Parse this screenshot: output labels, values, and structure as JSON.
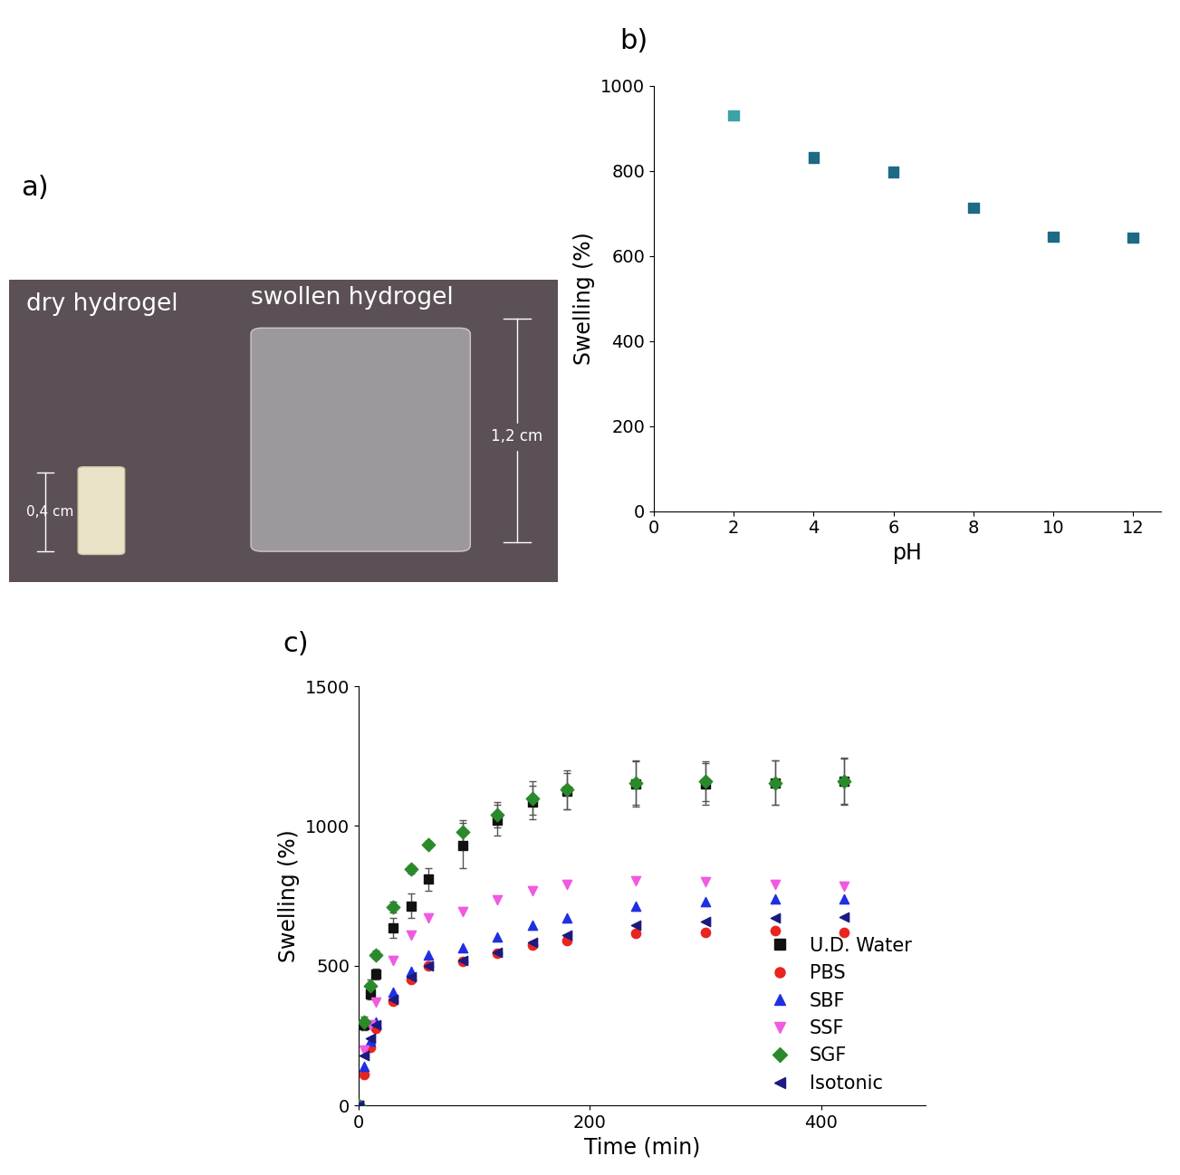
{
  "image": {
    "label": "a)",
    "dry_label": "dry hydrogel",
    "swollen_label": "swollen hydrogel",
    "dry_height": "0,4 cm",
    "swollen_height": "1,2 cm"
  },
  "chart_data": [
    {
      "type": "scatter",
      "title": "b)",
      "x_label": "pH",
      "y_label": "Swelling (%)",
      "x": [
        2,
        4,
        6,
        8,
        10,
        12
      ],
      "values": [
        930,
        832,
        797,
        713,
        645,
        643
      ],
      "colors": [
        "#3aa3a8",
        "#1d6a86",
        "#1d6a86",
        "#1d6a86",
        "#1d6a86",
        "#1d6a86"
      ],
      "marker": "square",
      "xlim": [
        0,
        12.7
      ],
      "xticks": [
        0,
        2,
        4,
        6,
        8,
        10,
        12
      ],
      "ylim": [
        0,
        1000
      ],
      "yticks": [
        0,
        200,
        400,
        600,
        800,
        1000
      ]
    },
    {
      "type": "scatter",
      "title": "c)",
      "x_label": "Time (min)",
      "y_label": "Swelling (%)",
      "x": [
        0,
        5,
        10,
        15,
        30,
        45,
        60,
        90,
        120,
        150,
        180,
        240,
        300,
        360,
        420
      ],
      "series": [
        {
          "name": "U.D. Water",
          "color": "#111111",
          "marker": "square",
          "values": [
            0,
            290,
            400,
            470,
            635,
            715,
            810,
            930,
            1020,
            1085,
            1125,
            1150,
            1150,
            1155,
            1160
          ],
          "errors": [
            0,
            20,
            20,
            20,
            35,
            45,
            40,
            80,
            55,
            60,
            65,
            80,
            75,
            80,
            80
          ]
        },
        {
          "name": "PBS",
          "color": "#e8251f",
          "marker": "circle",
          "values": [
            0,
            110,
            210,
            275,
            375,
            450,
            500,
            515,
            545,
            575,
            590,
            615,
            620,
            625,
            620
          ]
        },
        {
          "name": "SBF",
          "color": "#1f2fe0",
          "marker": "triangle_up",
          "values": [
            0,
            140,
            230,
            300,
            405,
            480,
            540,
            565,
            605,
            645,
            670,
            715,
            730,
            740,
            740
          ]
        },
        {
          "name": "SSF",
          "color": "#f05ae0",
          "marker": "triangle_down",
          "values": [
            0,
            200,
            290,
            370,
            520,
            610,
            670,
            695,
            735,
            770,
            790,
            805,
            800,
            790,
            785
          ]
        },
        {
          "name": "SGF",
          "color": "#2a8a2a",
          "marker": "diamond",
          "values": [
            0,
            300,
            430,
            540,
            710,
            845,
            935,
            980,
            1040,
            1100,
            1130,
            1155,
            1160,
            1155,
            1160
          ],
          "errors": [
            0,
            20,
            20,
            15,
            20,
            15,
            10,
            40,
            45,
            60,
            70,
            80,
            70,
            80,
            85
          ]
        },
        {
          "name": "Isotonic",
          "color": "#1a1a80",
          "marker": "triangle_left",
          "values": [
            0,
            180,
            240,
            290,
            380,
            460,
            500,
            520,
            550,
            585,
            610,
            645,
            660,
            670,
            675
          ]
        }
      ],
      "legend": "lower right",
      "xlim": [
        0,
        490
      ],
      "xticks": [
        0,
        200,
        400
      ],
      "ylim": [
        0,
        1500
      ],
      "yticks": [
        0,
        500,
        1000,
        1500
      ]
    }
  ]
}
